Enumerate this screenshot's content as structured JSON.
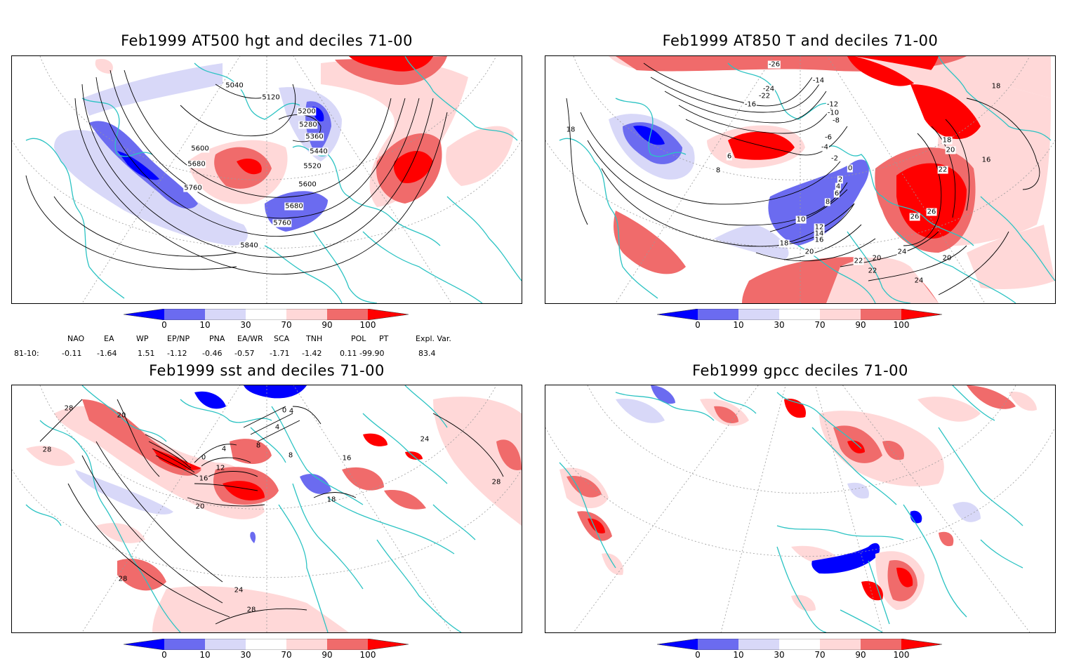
{
  "panels": [
    {
      "id": "p1",
      "title": "Feb1999 AT500 hgt and deciles 71-00",
      "contour_labels": [
        "5040",
        "5120",
        "5200",
        "5280",
        "5360",
        "5440",
        "5520",
        "5600",
        "5680",
        "5760",
        "5840",
        "5600",
        "5680",
        "5760"
      ]
    },
    {
      "id": "p2",
      "title": "Feb1999 AT850 T and deciles 71-00",
      "contour_labels": [
        "-26",
        "-24",
        "-22",
        "-16",
        "-14",
        "-12",
        "-10",
        "-8",
        "-6",
        "-4",
        "-2",
        "0",
        "2",
        "4",
        "6",
        "8",
        "10",
        "12",
        "14",
        "16",
        "18",
        "20",
        "22",
        "24",
        "26",
        "6",
        "8",
        "18",
        "18",
        "20",
        "22",
        "26",
        "16",
        "18",
        "20",
        "22",
        "20",
        "24"
      ]
    },
    {
      "id": "p3",
      "title": "Feb1999 sst and deciles 71-00",
      "contour_labels": [
        "28",
        "20",
        "28",
        "0",
        "4",
        "8",
        "12",
        "16",
        "20",
        "24",
        "28",
        "28",
        "0",
        "4",
        "4",
        "8",
        "16",
        "18",
        "24",
        "28"
      ]
    },
    {
      "id": "p4",
      "title": "Feb1999 gpcc deciles 71-00",
      "contour_labels": []
    }
  ],
  "colorbar": {
    "ticks": [
      "0",
      "10",
      "30",
      "70",
      "90",
      "100"
    ],
    "colors": [
      "#0000ff",
      "#6b6bf0",
      "#d8d8f8",
      "#ffffff",
      "#ffd8d8",
      "#f06b6b",
      "#ff0000"
    ]
  },
  "teleconnections": {
    "row_label": "81-10:",
    "headers": [
      "NAO",
      "EA",
      "WP",
      "EP/NP",
      "PNA",
      "EA/WR",
      "SCA",
      "TNH",
      "POL",
      "PT",
      "Expl. Var."
    ],
    "values": [
      "-0.11",
      "-1.64",
      "1.51",
      "-1.12",
      "-0.46",
      "-0.57",
      "-1.71",
      "-1.42",
      "0.11",
      "-99.90",
      "83.4"
    ]
  },
  "colors": {
    "coastline": "#2cc3c3",
    "contour": "#000000",
    "grid": "#9a9a9a",
    "strong_low": "#0000ff",
    "moderate_low": "#6b6bf0",
    "weak_low": "#d8d8f8",
    "weak_high": "#ffd8d8",
    "moderate_high": "#f06b6b",
    "strong_high": "#ff0000"
  }
}
